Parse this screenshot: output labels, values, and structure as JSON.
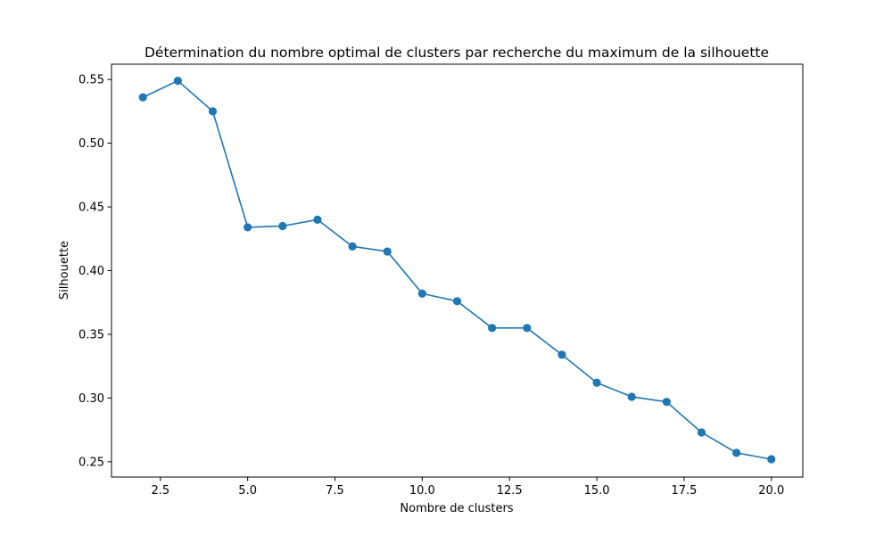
{
  "chart_data": {
    "type": "line",
    "title": "Détermination du nombre optimal de clusters par recherche du maximum de la silhouette",
    "xlabel": "Nombre de clusters",
    "ylabel": "Silhouette",
    "xlim": [
      1.1,
      20.9
    ],
    "ylim": [
      0.238,
      0.562
    ],
    "x_ticks": [
      2.5,
      5.0,
      7.5,
      10.0,
      12.5,
      15.0,
      17.5,
      20.0
    ],
    "x_tick_labels": [
      "2.5",
      "5.0",
      "7.5",
      "10.0",
      "12.5",
      "15.0",
      "17.5",
      "20.0"
    ],
    "y_ticks": [
      0.25,
      0.3,
      0.35,
      0.4,
      0.45,
      0.5,
      0.55
    ],
    "y_tick_labels": [
      "0.25",
      "0.30",
      "0.35",
      "0.40",
      "0.45",
      "0.50",
      "0.55"
    ],
    "grid": false,
    "series": [
      {
        "color": "#1f77b4",
        "marker": "circle",
        "x": [
          2,
          3,
          4,
          5,
          6,
          7,
          8,
          9,
          10,
          11,
          12,
          13,
          14,
          15,
          16,
          17,
          18,
          19,
          20
        ],
        "y": [
          0.536,
          0.549,
          0.525,
          0.434,
          0.435,
          0.44,
          0.419,
          0.415,
          0.382,
          0.376,
          0.355,
          0.355,
          0.334,
          0.312,
          0.301,
          0.297,
          0.273,
          0.257,
          0.252
        ]
      }
    ]
  }
}
